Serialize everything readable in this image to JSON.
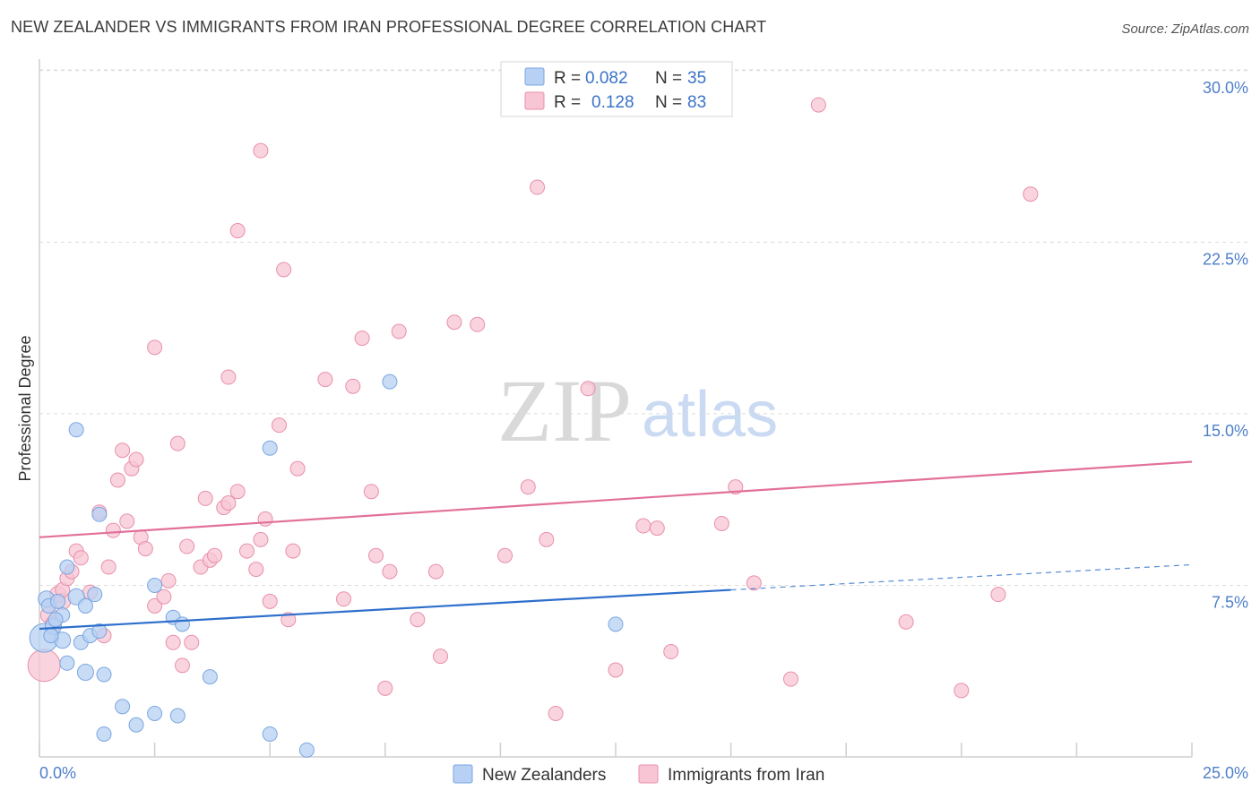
{
  "header": {
    "title": "NEW ZEALANDER VS IMMIGRANTS FROM IRAN PROFESSIONAL DEGREE CORRELATION CHART",
    "source": "Source: ZipAtlas.com"
  },
  "watermark": {
    "zip": "ZIP",
    "atlas": "atlas"
  },
  "legend": {
    "r_label": "R =",
    "n_label": "N =",
    "entries": [
      {
        "r": "0.082",
        "n": "35"
      },
      {
        "r": "0.128",
        "n": "83"
      }
    ]
  },
  "colors": {
    "blue_fill": "#b7d0f3",
    "blue_stroke": "#7aa6e0",
    "blue_line": "#2e6fcc",
    "pink_fill": "#f7c5d3",
    "pink_stroke": "#e98fab",
    "pink_line": "#e2709a",
    "tick_text": "#4d7fc9"
  },
  "chart_data": {
    "type": "scatter",
    "title": "NEW ZEALANDER VS IMMIGRANTS FROM IRAN PROFESSIONAL DEGREE CORRELATION CHART",
    "xlabel": "",
    "ylabel": "Professional Degree",
    "xlim": [
      0,
      25
    ],
    "ylim": [
      0,
      30.5
    ],
    "x_tick_labels": [
      "0.0%",
      "25.0%"
    ],
    "y_tick_labels": [
      {
        "value": 7.5,
        "label": "7.5%"
      },
      {
        "value": 15,
        "label": "15.0%"
      },
      {
        "value": 22.5,
        "label": "22.5%"
      },
      {
        "value": 30,
        "label": "30.0%"
      }
    ],
    "grid": true,
    "legend_position": "top-center",
    "series": [
      {
        "name": "New Zealanders",
        "r": 0.082,
        "n": 35,
        "trend": {
          "x": [
            0,
            15
          ],
          "y": [
            5.6,
            7.3
          ],
          "dashed_to": {
            "x": 25,
            "y": 8.4
          }
        },
        "points": [
          [
            0.1,
            5.2,
            16
          ],
          [
            0.15,
            6.9,
            9
          ],
          [
            0.2,
            6.6,
            8
          ],
          [
            0.3,
            5.7,
            9
          ],
          [
            0.4,
            6.8,
            8
          ],
          [
            0.5,
            6.2,
            8
          ],
          [
            0.5,
            5.1,
            9
          ],
          [
            0.6,
            8.3,
            8
          ],
          [
            0.6,
            4.1,
            8
          ],
          [
            0.8,
            7.0,
            9
          ],
          [
            0.8,
            14.3,
            8
          ],
          [
            0.9,
            5.0,
            8
          ],
          [
            1.0,
            6.6,
            8
          ],
          [
            1.0,
            3.7,
            9
          ],
          [
            1.1,
            5.3,
            8
          ],
          [
            1.2,
            7.1,
            8
          ],
          [
            1.3,
            5.5,
            8
          ],
          [
            1.3,
            10.6,
            8
          ],
          [
            1.4,
            3.6,
            8
          ],
          [
            1.4,
            1.0,
            8
          ],
          [
            1.8,
            2.2,
            8
          ],
          [
            2.1,
            1.4,
            8
          ],
          [
            2.5,
            1.9,
            8
          ],
          [
            2.5,
            7.5,
            8
          ],
          [
            2.9,
            6.1,
            8
          ],
          [
            3.0,
            1.8,
            8
          ],
          [
            3.1,
            5.8,
            8
          ],
          [
            3.7,
            3.5,
            8
          ],
          [
            5.0,
            13.5,
            8
          ],
          [
            5.0,
            1.0,
            8
          ],
          [
            5.8,
            0.3,
            8
          ],
          [
            7.6,
            16.4,
            8
          ],
          [
            12.5,
            5.8,
            8
          ],
          [
            0.25,
            5.3,
            8
          ],
          [
            0.35,
            6.0,
            8
          ]
        ]
      },
      {
        "name": "Immigrants from Iran",
        "r": 0.128,
        "n": 83,
        "trend": {
          "x": [
            0,
            25
          ],
          "y": [
            9.6,
            12.9
          ]
        },
        "points": [
          [
            0.1,
            4.0,
            18
          ],
          [
            0.2,
            6.2,
            9
          ],
          [
            0.3,
            5.8,
            9
          ],
          [
            0.4,
            7.1,
            9
          ],
          [
            0.5,
            6.8,
            9
          ],
          [
            0.5,
            7.3,
            8
          ],
          [
            0.6,
            7.8,
            8
          ],
          [
            0.7,
            8.1,
            8
          ],
          [
            0.8,
            9.0,
            8
          ],
          [
            0.9,
            8.7,
            8
          ],
          [
            1.1,
            7.2,
            8
          ],
          [
            1.3,
            10.7,
            8
          ],
          [
            1.4,
            5.3,
            8
          ],
          [
            1.5,
            8.3,
            8
          ],
          [
            1.6,
            9.9,
            8
          ],
          [
            1.7,
            12.1,
            8
          ],
          [
            1.8,
            13.4,
            8
          ],
          [
            1.9,
            10.3,
            8
          ],
          [
            2.0,
            12.6,
            8
          ],
          [
            2.1,
            13.0,
            8
          ],
          [
            2.2,
            9.6,
            8
          ],
          [
            2.3,
            9.1,
            8
          ],
          [
            2.5,
            6.6,
            8
          ],
          [
            2.5,
            17.9,
            8
          ],
          [
            2.7,
            7.0,
            8
          ],
          [
            2.8,
            7.7,
            8
          ],
          [
            2.9,
            5.0,
            8
          ],
          [
            3.0,
            13.7,
            8
          ],
          [
            3.1,
            4.0,
            8
          ],
          [
            3.2,
            9.2,
            8
          ],
          [
            3.3,
            5.0,
            8
          ],
          [
            3.5,
            8.3,
            8
          ],
          [
            3.6,
            11.3,
            8
          ],
          [
            3.7,
            8.6,
            8
          ],
          [
            3.8,
            8.8,
            8
          ],
          [
            4.0,
            10.9,
            8
          ],
          [
            4.1,
            11.1,
            8
          ],
          [
            4.1,
            16.6,
            8
          ],
          [
            4.3,
            11.6,
            8
          ],
          [
            4.3,
            23.0,
            8
          ],
          [
            4.5,
            9.0,
            8
          ],
          [
            4.7,
            8.2,
            8
          ],
          [
            4.8,
            9.5,
            8
          ],
          [
            4.8,
            26.5,
            8
          ],
          [
            4.9,
            10.4,
            8
          ],
          [
            5.0,
            6.8,
            8
          ],
          [
            5.2,
            14.5,
            8
          ],
          [
            5.3,
            21.3,
            8
          ],
          [
            5.4,
            6.0,
            8
          ],
          [
            5.5,
            9.0,
            8
          ],
          [
            5.6,
            12.6,
            8
          ],
          [
            6.2,
            16.5,
            8
          ],
          [
            6.6,
            6.9,
            8
          ],
          [
            6.8,
            16.2,
            8
          ],
          [
            7.0,
            18.3,
            8
          ],
          [
            7.2,
            11.6,
            8
          ],
          [
            7.3,
            8.8,
            8
          ],
          [
            7.5,
            3.0,
            8
          ],
          [
            7.6,
            8.1,
            8
          ],
          [
            7.8,
            18.6,
            8
          ],
          [
            8.2,
            6.0,
            8
          ],
          [
            8.6,
            8.1,
            8
          ],
          [
            8.7,
            4.4,
            8
          ],
          [
            9.0,
            19.0,
            8
          ],
          [
            9.5,
            18.9,
            8
          ],
          [
            10.1,
            8.8,
            8
          ],
          [
            10.6,
            11.8,
            8
          ],
          [
            10.8,
            24.9,
            8
          ],
          [
            11.0,
            9.5,
            8
          ],
          [
            11.2,
            1.9,
            8
          ],
          [
            11.9,
            16.1,
            8
          ],
          [
            12.5,
            3.8,
            8
          ],
          [
            13.1,
            10.1,
            8
          ],
          [
            13.4,
            10.0,
            8
          ],
          [
            13.7,
            4.6,
            8
          ],
          [
            14.8,
            10.2,
            8
          ],
          [
            15.1,
            11.8,
            8
          ],
          [
            15.5,
            7.6,
            8
          ],
          [
            16.3,
            3.4,
            8
          ],
          [
            16.9,
            28.5,
            8
          ],
          [
            18.8,
            5.9,
            8
          ],
          [
            20.0,
            2.9,
            8
          ],
          [
            20.8,
            7.1,
            8
          ],
          [
            21.5,
            24.6,
            8
          ]
        ]
      }
    ]
  },
  "bottom_legend": {
    "items": [
      "New Zealanders",
      "Immigrants from Iran"
    ]
  }
}
